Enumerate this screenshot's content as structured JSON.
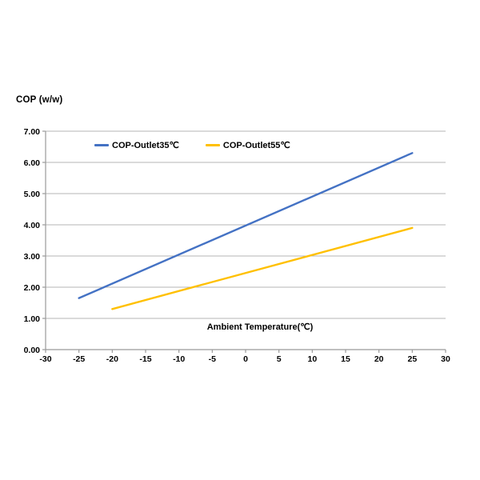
{
  "chart": {
    "y_axis_title": "COP (w/w)",
    "x_axis_title": "Ambient Temperature(℃)"
  },
  "chart_data": {
    "type": "line",
    "title": "",
    "xlabel": "Ambient Temperature(℃)",
    "ylabel": "COP (w/w)",
    "xlim": [
      -30,
      30
    ],
    "ylim": [
      0,
      7
    ],
    "xticks": [
      -30,
      -25,
      -20,
      -15,
      -10,
      -5,
      0,
      5,
      10,
      15,
      20,
      25,
      30
    ],
    "yticks": [
      0,
      1,
      2,
      3,
      4,
      5,
      6,
      7
    ],
    "ytick_decimals": 2,
    "grid": "horizontal-only",
    "legend_position": "top-inside",
    "series": [
      {
        "name": "COP-Outlet35℃",
        "color": "#4472C4",
        "points": [
          [
            -25,
            1.65
          ],
          [
            25,
            6.3
          ]
        ]
      },
      {
        "name": "COP-Outlet55℃",
        "color": "#FFC000",
        "points": [
          [
            -20,
            1.3
          ],
          [
            25,
            3.9
          ]
        ]
      }
    ],
    "colors": {
      "background": "#ffffff",
      "gridline": "#b5b5b5",
      "axis": "#9a9a9a",
      "text": "#000000"
    }
  }
}
